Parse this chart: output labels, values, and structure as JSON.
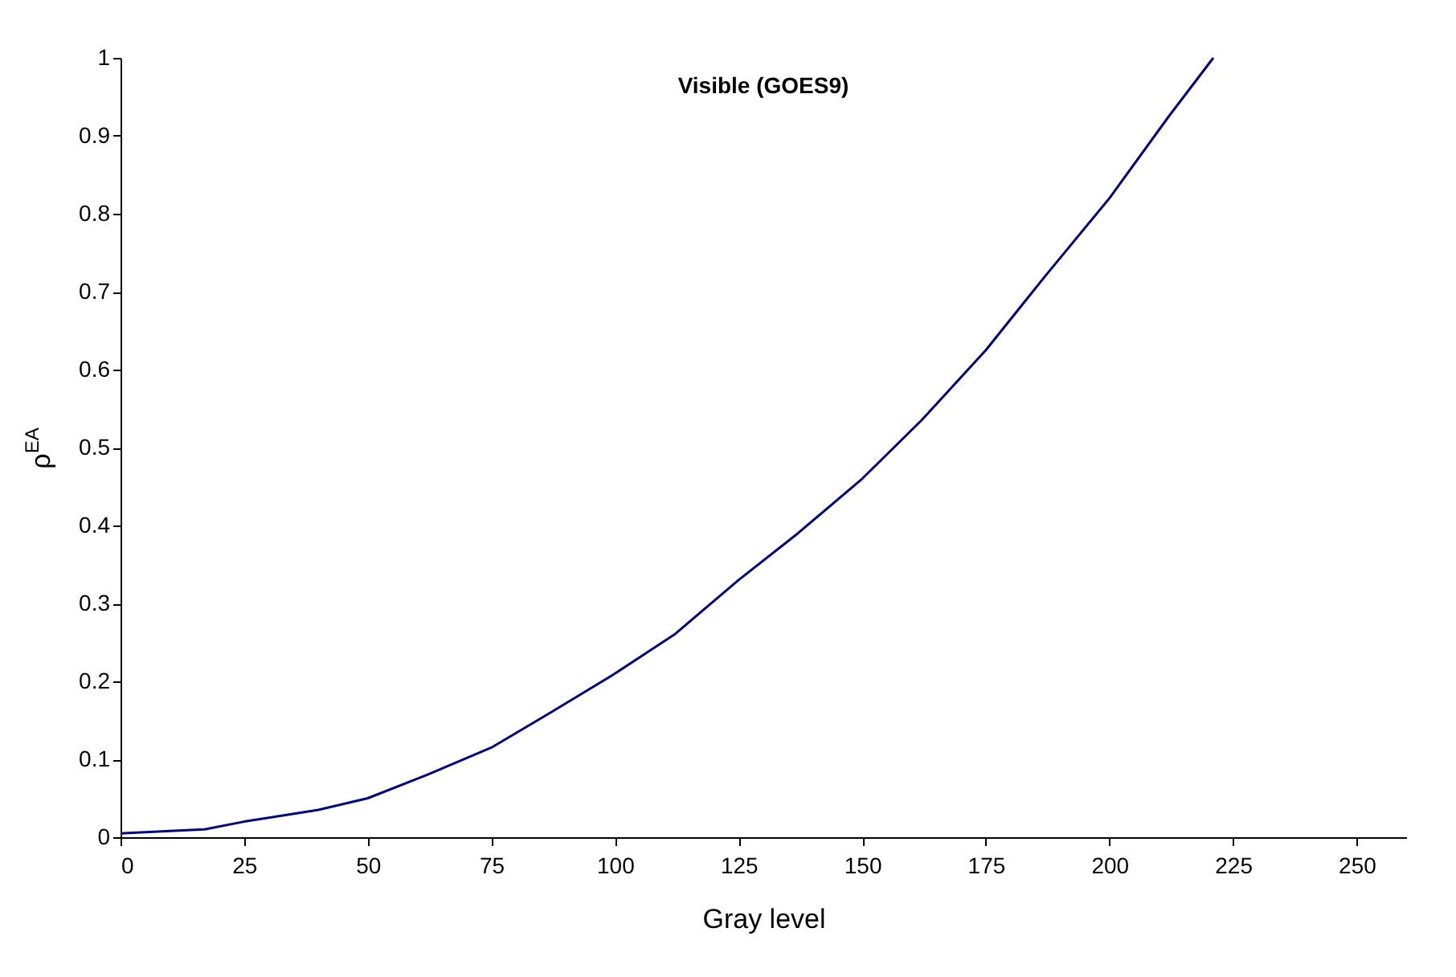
{
  "chart_data": {
    "type": "line",
    "title": "Visible (GOES9)",
    "xlabel": "Gray level",
    "ylabel": "ρ$^{EA}$",
    "x": [
      0,
      10,
      17,
      25,
      40,
      50,
      62,
      75,
      87,
      100,
      112,
      125,
      137,
      150,
      162,
      175,
      187,
      200,
      212,
      221
    ],
    "series": [
      {
        "color": "#000080",
        "values": [
          0.005,
          0.008,
          0.01,
          0.02,
          0.035,
          0.05,
          0.08,
          0.115,
          0.16,
          0.21,
          0.26,
          0.33,
          0.39,
          0.46,
          0.535,
          0.625,
          0.72,
          0.82,
          0.925,
          1.0
        ]
      }
    ],
    "xlim": [
      0,
      260
    ],
    "xticks": [
      0,
      25,
      50,
      75,
      100,
      125,
      150,
      175,
      200,
      225,
      250
    ],
    "ylim": [
      0,
      1
    ],
    "yticks": [
      0,
      0.1,
      0.2,
      0.3,
      0.4,
      0.5,
      0.6,
      0.7,
      0.8,
      0.9,
      1
    ],
    "grid": false,
    "legend": false,
    "marker": "none",
    "line_style": "solid"
  }
}
